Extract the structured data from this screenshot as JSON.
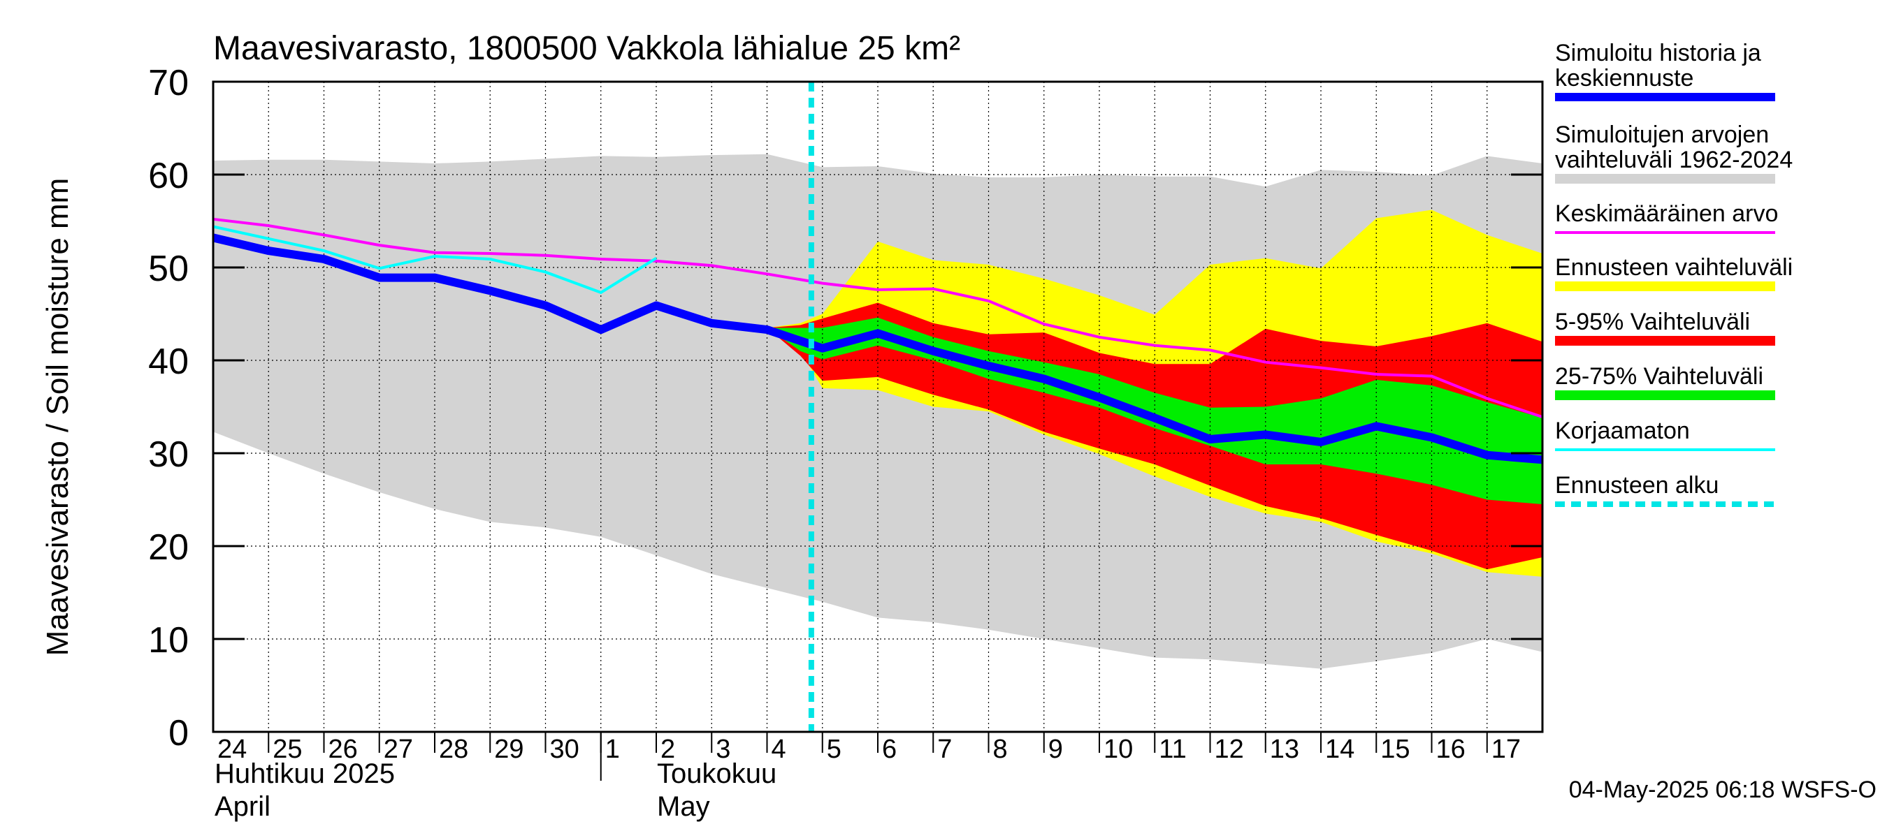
{
  "chart_data": {
    "type": "area",
    "title": "Maavesivarasto, 1800500 Vakkola lähialue 25 km²",
    "ylabel": "Maavesivarasto / Soil moisture   mm",
    "ylim": [
      0,
      70
    ],
    "yticks": [
      0,
      10,
      20,
      30,
      40,
      50,
      60,
      70
    ],
    "x_days": [
      "24",
      "25",
      "26",
      "27",
      "28",
      "29",
      "30",
      "1",
      "2",
      "3",
      "4",
      "5",
      "6",
      "7",
      "8",
      "9",
      "10",
      "11",
      "12",
      "13",
      "14",
      "15",
      "16",
      "17"
    ],
    "month_labels": [
      {
        "fi": "Huhtikuu  2025",
        "en": "April"
      },
      {
        "fi": "Toukokuu",
        "en": "May"
      }
    ],
    "forecast_start": 10.8,
    "timestamp": "04-May-2025 06:18 WSFS-O",
    "colors": {
      "sim_range": "#d3d3d3",
      "ens_range": "#ffff00",
      "p5_95": "#ff0000",
      "p25_75": "#00ee00",
      "history": "#0000ff",
      "mean": "#ff00ff",
      "uncorrected": "#00ffff",
      "forecast_start": "#00e5e5"
    },
    "legend": [
      {
        "label": "Simuloitu historia ja keskiennuste",
        "key": "history"
      },
      {
        "label": "Simuloitujen arvojen vaihteluväli 1962-2024",
        "key": "sim_range"
      },
      {
        "label": "Keskimääräinen arvo",
        "key": "mean"
      },
      {
        "label": "Ennusteen vaihteluväli",
        "key": "ens_range"
      },
      {
        "label": "5-95% Vaihteluväli",
        "key": "p5_95"
      },
      {
        "label": "25-75% Vaihteluväli",
        "key": "p25_75"
      },
      {
        "label": "Korjaamaton",
        "key": "uncorrected"
      },
      {
        "label": "Ennusteen alku",
        "key": "forecast_start"
      }
    ],
    "series": {
      "sim_range": {
        "x": [
          0,
          1,
          2,
          3,
          4,
          5,
          6,
          7,
          8,
          9,
          10,
          11,
          12,
          13,
          14,
          15,
          16,
          17,
          18,
          19,
          20,
          21,
          22,
          23,
          24
        ],
        "upper": [
          61.5,
          61.6,
          61.6,
          61.4,
          61.2,
          61.4,
          61.7,
          62.0,
          61.9,
          62.1,
          62.2,
          60.8,
          60.9,
          60.1,
          59.7,
          59.7,
          60.0,
          59.8,
          59.8,
          58.7,
          60.5,
          60.3,
          59.9,
          62.0,
          61.2
        ],
        "lower": [
          32.3,
          30.0,
          27.8,
          25.8,
          24.0,
          22.6,
          22.0,
          21.0,
          19.0,
          17.0,
          15.5,
          14.0,
          12.3,
          11.8,
          11.0,
          10.0,
          9.0,
          8.0,
          7.8,
          7.3,
          6.8,
          7.6,
          8.5,
          10.0,
          8.6
        ]
      },
      "ens_range": {
        "x": [
          10,
          10.6,
          11,
          12,
          13,
          14,
          15,
          16,
          17,
          18,
          19,
          20,
          21,
          22,
          23,
          24
        ],
        "upper": [
          43.5,
          44.0,
          45.0,
          52.8,
          50.8,
          50.3,
          48.8,
          47.0,
          44.9,
          50.3,
          51.0,
          49.9,
          55.3,
          56.2,
          53.5,
          51.5
        ],
        "lower": [
          43.5,
          41.0,
          37.0,
          36.8,
          35.0,
          34.5,
          32.0,
          29.9,
          27.5,
          25.3,
          23.5,
          22.6,
          20.5,
          19.2,
          17.2,
          16.7
        ]
      },
      "p5_95": {
        "x": [
          10,
          10.6,
          11,
          12,
          13,
          14,
          15,
          16,
          17,
          18,
          19,
          20,
          21,
          22,
          23,
          24
        ],
        "upper": [
          43.5,
          43.8,
          44.5,
          46.2,
          44.0,
          42.8,
          43.0,
          40.8,
          39.6,
          39.6,
          43.4,
          42.1,
          41.5,
          42.6,
          44.0,
          42.0
        ],
        "lower": [
          43.5,
          40.5,
          37.8,
          38.2,
          36.3,
          34.7,
          32.3,
          30.5,
          28.8,
          26.5,
          24.3,
          23.0,
          21.2,
          19.5,
          17.5,
          18.8
        ]
      },
      "p25_75": {
        "x": [
          10,
          10.6,
          11,
          12,
          13,
          14,
          15,
          16,
          17,
          18,
          19,
          20,
          21,
          22,
          23,
          24
        ],
        "upper": [
          43.5,
          43.5,
          43.5,
          44.6,
          42.5,
          41.0,
          39.8,
          38.5,
          36.5,
          34.9,
          35.0,
          35.9,
          37.9,
          37.3,
          35.5,
          33.8
        ],
        "lower": [
          43.5,
          41.0,
          40.1,
          41.6,
          40.0,
          38.0,
          36.5,
          34.9,
          32.7,
          30.8,
          28.8,
          28.8,
          27.8,
          26.6,
          25.0,
          24.5
        ]
      },
      "history": {
        "x": [
          0,
          1,
          2,
          3,
          4,
          5,
          6,
          7,
          8,
          9,
          10,
          11,
          12,
          13,
          14,
          15,
          16,
          17,
          18,
          19,
          20,
          21,
          22,
          23,
          24
        ],
        "y": [
          53.2,
          51.8,
          50.9,
          48.9,
          48.9,
          47.5,
          45.9,
          43.3,
          45.9,
          44.0,
          43.3,
          41.3,
          42.9,
          41.0,
          39.4,
          38.0,
          36.0,
          33.8,
          31.5,
          32.0,
          31.2,
          32.9,
          31.7,
          29.8,
          29.3
        ]
      },
      "mean": {
        "x": [
          0,
          1,
          2,
          3,
          4,
          5,
          6,
          7,
          8,
          9,
          10,
          11,
          12,
          13,
          14,
          15,
          16,
          17,
          18,
          19,
          20,
          21,
          22,
          23,
          24
        ],
        "y": [
          55.2,
          54.5,
          53.5,
          52.4,
          51.6,
          51.5,
          51.3,
          50.9,
          50.7,
          50.2,
          49.3,
          48.3,
          47.6,
          47.7,
          46.4,
          43.9,
          42.5,
          41.6,
          41.1,
          39.8,
          39.2,
          38.5,
          38.3,
          35.9,
          33.9
        ]
      },
      "uncorrected": {
        "x": [
          0,
          1,
          2,
          3,
          4,
          5,
          6,
          7,
          8
        ],
        "y": [
          54.4,
          53.1,
          51.8,
          49.9,
          51.2,
          50.9,
          49.5,
          47.3,
          51.0
        ]
      }
    }
  }
}
